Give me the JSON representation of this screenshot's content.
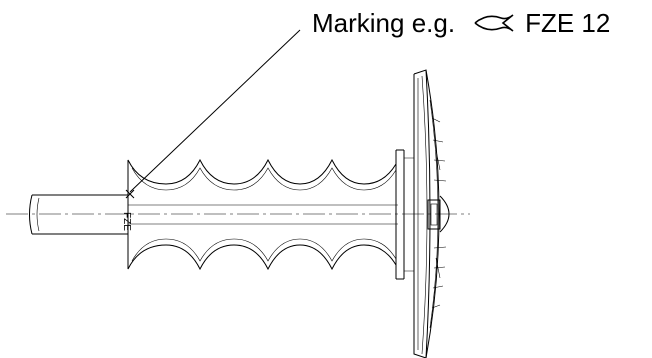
{
  "callout": {
    "prefix": "Marking e.g.",
    "symbol_icon": "fish-symbol-icon",
    "code": "FZE 12"
  },
  "part_marking": "FZE"
}
